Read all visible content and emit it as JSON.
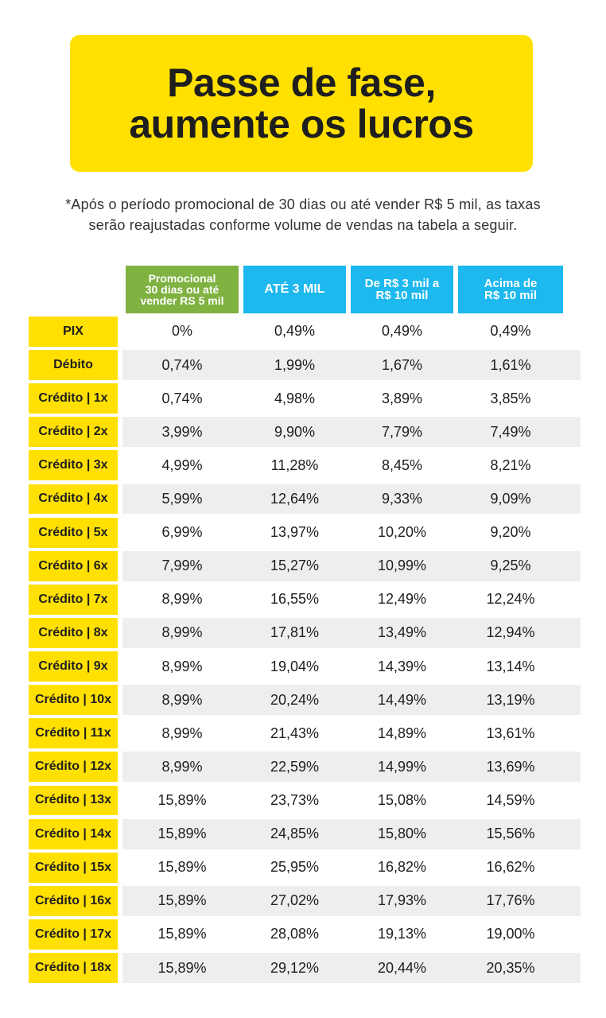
{
  "title": {
    "line1": "Passe de fase,",
    "line2": "aumente os lucros"
  },
  "note": {
    "line1": "*Após o período promocional de 30 dias ou até vender R$ 5 mil, as taxas",
    "line2": "serão reajustadas conforme volume de vendas na tabela a seguir."
  },
  "table": {
    "headers": {
      "promocional": [
        "Promocional",
        "30 dias ou até",
        "vender RS 5 mil"
      ],
      "ate3mil": "ATÉ 3 MIL",
      "de3a10mil": [
        "De R$ 3 mil a",
        "R$ 10 mil"
      ],
      "acima10mil": [
        "Acima de",
        "R$ 10 mil"
      ]
    },
    "rows": [
      {
        "label": "PIX",
        "promo": "0%",
        "ate3": "0,49%",
        "de3a10": "0,49%",
        "acima10": "0,49%"
      },
      {
        "label": "Débito",
        "promo": "0,74%",
        "ate3": "1,99%",
        "de3a10": "1,67%",
        "acima10": "1,61%"
      },
      {
        "label": "Crédito | 1x",
        "promo": "0,74%",
        "ate3": "4,98%",
        "de3a10": "3,89%",
        "acima10": "3,85%"
      },
      {
        "label": "Crédito | 2x",
        "promo": "3,99%",
        "ate3": "9,90%",
        "de3a10": "7,79%",
        "acima10": "7,49%"
      },
      {
        "label": "Crédito | 3x",
        "promo": "4,99%",
        "ate3": "11,28%",
        "de3a10": "8,45%",
        "acima10": "8,21%"
      },
      {
        "label": "Crédito | 4x",
        "promo": "5,99%",
        "ate3": "12,64%",
        "de3a10": "9,33%",
        "acima10": "9,09%"
      },
      {
        "label": "Crédito | 5x",
        "promo": "6,99%",
        "ate3": "13,97%",
        "de3a10": "10,20%",
        "acima10": "9,20%"
      },
      {
        "label": "Crédito | 6x",
        "promo": "7,99%",
        "ate3": "15,27%",
        "de3a10": "10,99%",
        "acima10": "9,25%"
      },
      {
        "label": "Crédito | 7x",
        "promo": "8,99%",
        "ate3": "16,55%",
        "de3a10": "12,49%",
        "acima10": "12,24%"
      },
      {
        "label": "Crédito | 8x",
        "promo": "8,99%",
        "ate3": "17,81%",
        "de3a10": "13,49%",
        "acima10": "12,94%"
      },
      {
        "label": "Crédito | 9x",
        "promo": "8,99%",
        "ate3": "19,04%",
        "de3a10": "14,39%",
        "acima10": "13,14%"
      },
      {
        "label": "Crédito | 10x",
        "promo": "8,99%",
        "ate3": "20,24%",
        "de3a10": "14,49%",
        "acima10": "13,19%"
      },
      {
        "label": "Crédito | 11x",
        "promo": "8,99%",
        "ate3": "21,43%",
        "de3a10": "14,89%",
        "acima10": "13,61%"
      },
      {
        "label": "Crédito | 12x",
        "promo": "8,99%",
        "ate3": "22,59%",
        "de3a10": "14,99%",
        "acima10": "13,69%"
      },
      {
        "label": "Crédito | 13x",
        "promo": "15,89%",
        "ate3": "23,73%",
        "de3a10": "15,08%",
        "acima10": "14,59%"
      },
      {
        "label": "Crédito | 14x",
        "promo": "15,89%",
        "ate3": "24,85%",
        "de3a10": "15,80%",
        "acima10": "15,56%"
      },
      {
        "label": "Crédito | 15x",
        "promo": "15,89%",
        "ate3": "25,95%",
        "de3a10": "16,82%",
        "acima10": "16,62%"
      },
      {
        "label": "Crédito | 16x",
        "promo": "15,89%",
        "ate3": "27,02%",
        "de3a10": "17,93%",
        "acima10": "17,76%"
      },
      {
        "label": "Crédito | 17x",
        "promo": "15,89%",
        "ate3": "28,08%",
        "de3a10": "19,13%",
        "acima10": "19,00%"
      },
      {
        "label": "Crédito | 18x",
        "promo": "15,89%",
        "ate3": "29,12%",
        "de3a10": "20,44%",
        "acima10": "20,35%"
      }
    ]
  },
  "colors": {
    "brand_yellow": "#ffe000",
    "promo_green": "#7fb241",
    "header_blue": "#1cb8ee",
    "row_stripe": "#eeeeee"
  }
}
